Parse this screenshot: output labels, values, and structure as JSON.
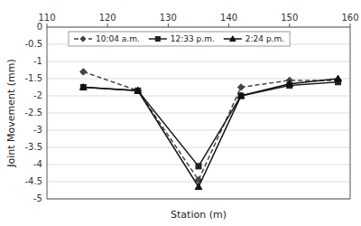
{
  "chart_data": {
    "type": "line",
    "xlabel": "Station (m)",
    "ylabel": "Joint Movement (mm)",
    "x": [
      116,
      125,
      135,
      142,
      150,
      158
    ],
    "series": [
      {
        "name": "10:04 a.m.",
        "color": "#444444",
        "marker": "diamond",
        "line_style": "dashed",
        "values": [
          -1.3,
          -1.85,
          -4.45,
          -1.75,
          -1.55,
          -1.55
        ]
      },
      {
        "name": "12:33 p.m.",
        "color": "#222222",
        "marker": "square",
        "line_style": "solid",
        "values": [
          -1.75,
          -1.85,
          -4.05,
          -2.0,
          -1.7,
          -1.6
        ]
      },
      {
        "name": "2:24 p.m.",
        "color": "#111111",
        "marker": "triangle",
        "line_style": "solid",
        "values": [
          -1.75,
          -1.85,
          -4.65,
          -2.0,
          -1.65,
          -1.5
        ]
      }
    ],
    "xlim": [
      110,
      160
    ],
    "ylim": [
      -5,
      0
    ],
    "xticks": [
      110,
      120,
      130,
      140,
      150,
      160
    ],
    "yticks": [
      0,
      -0.5,
      -1,
      -1.5,
      -2,
      -2.5,
      -3,
      -3.5,
      -4,
      -4.5,
      -5
    ],
    "grid": true,
    "legend": "upper left"
  }
}
